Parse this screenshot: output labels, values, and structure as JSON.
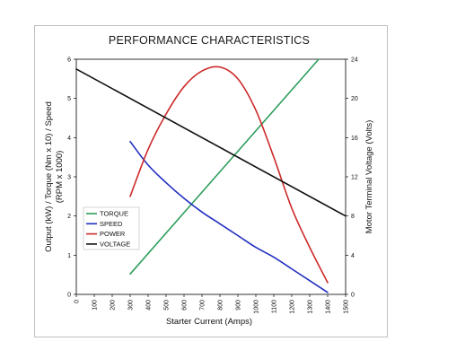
{
  "chart_data": {
    "type": "line",
    "title": "PERFORMANCE CHARACTERISTICS",
    "xlabel": "Starter Current (Amps)",
    "ylabel_left": "Output (kW) / Torque (Nm x 10) / Speed (RPM x 1000)",
    "ylabel_left_lines": [
      "Output (kW) / Torque (Nm x 10) / Speed",
      "(RPM x 1000)"
    ],
    "ylabel_right": "Motor Terminal Voltage (Volts)",
    "xlim": [
      0,
      1500
    ],
    "ylim_left": [
      0,
      6
    ],
    "ylim_right": [
      0,
      24
    ],
    "x_ticks": [
      "0",
      "100",
      "200",
      "300",
      "400",
      "500",
      "600",
      "700",
      "800",
      "900",
      "1000",
      "1100",
      "1200",
      "1300",
      "1400",
      "1500"
    ],
    "y_left_ticks": [
      "0",
      "1",
      "2",
      "3",
      "4",
      "5",
      "6"
    ],
    "y_right_ticks": [
      "0",
      "4",
      "8",
      "12",
      "16",
      "20",
      "24"
    ],
    "legend_position": "left-middle",
    "series": [
      {
        "name": "TORQUE",
        "color": "#2e9e5b",
        "axis": "left",
        "x": [
          300,
          1350
        ],
        "y": [
          0.52,
          6.0
        ]
      },
      {
        "name": "SPEED",
        "color": "#1f2fbf",
        "axis": "left",
        "x": [
          300,
          400,
          500,
          600,
          700,
          800,
          900,
          1000,
          1100,
          1200,
          1300,
          1400
        ],
        "y": [
          3.9,
          3.3,
          2.85,
          2.45,
          2.1,
          1.8,
          1.5,
          1.2,
          0.95,
          0.65,
          0.35,
          0.05
        ]
      },
      {
        "name": "POWER",
        "color": "#cc2a2a",
        "axis": "left",
        "x": [
          300,
          400,
          500,
          600,
          700,
          800,
          900,
          1000,
          1100,
          1200,
          1300,
          1400
        ],
        "y": [
          2.5,
          3.7,
          4.6,
          5.3,
          5.7,
          5.8,
          5.5,
          4.7,
          3.5,
          2.2,
          1.2,
          0.3
        ]
      },
      {
        "name": "VOLTAGE",
        "color": "#111111",
        "axis": "right",
        "x": [
          0,
          1500
        ],
        "y": [
          23.0,
          8.0
        ]
      }
    ]
  }
}
